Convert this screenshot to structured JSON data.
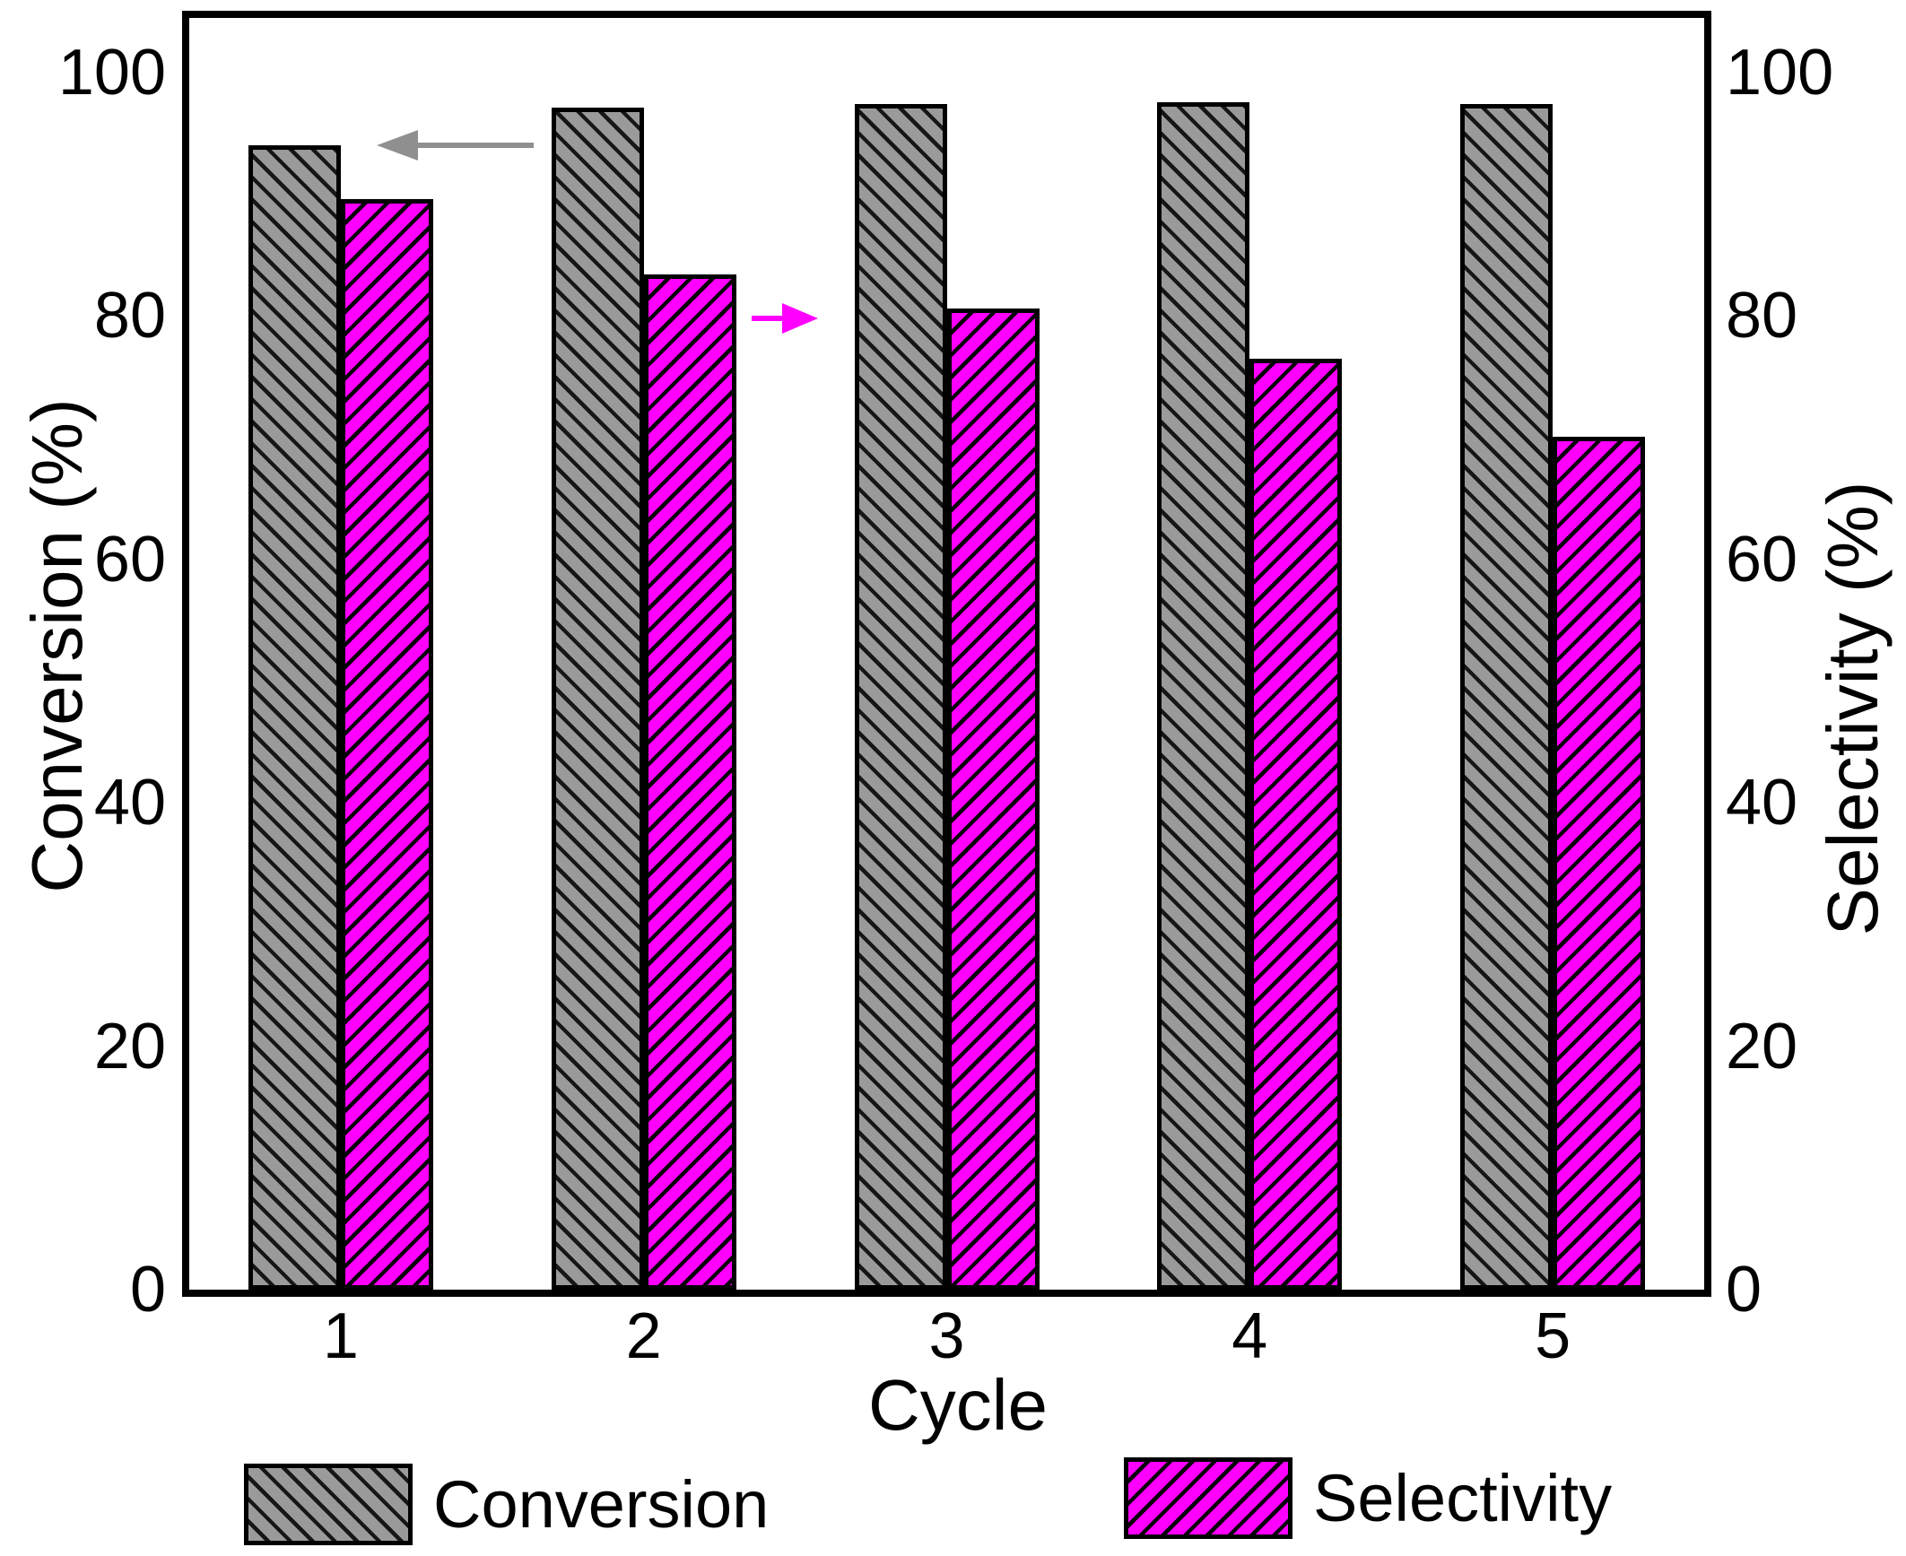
{
  "chart_data": {
    "type": "bar",
    "title": "",
    "xlabel": "Cycle",
    "ylabel_left": "Conversion (%)",
    "ylabel_right": "Selectivity (%)",
    "categories": [
      "1",
      "2",
      "3",
      "4",
      "5"
    ],
    "series": [
      {
        "name": "Conversion",
        "axis": "left",
        "color": "#9a9a9a",
        "hatch": "\\",
        "values": [
          94.0,
          97.1,
          97.4,
          97.6,
          97.4
        ]
      },
      {
        "name": "Selectivity",
        "axis": "right",
        "color": "#ff00ff",
        "hatch": "/",
        "values": [
          89.6,
          83.4,
          80.6,
          76.5,
          70.1
        ]
      }
    ],
    "yticks_left": [
      0,
      20,
      40,
      60,
      80,
      100
    ],
    "yticks_right": [
      0,
      20,
      40,
      60,
      80,
      100
    ],
    "ylim": [
      0,
      104.5
    ],
    "grid": false,
    "legend_position": "bottom",
    "annotations": [
      {
        "type": "arrow",
        "direction": "left",
        "color": "#8f8f8f",
        "series": "Conversion"
      },
      {
        "type": "arrow",
        "direction": "right",
        "color": "#ff00ff",
        "series": "Selectivity"
      }
    ]
  }
}
